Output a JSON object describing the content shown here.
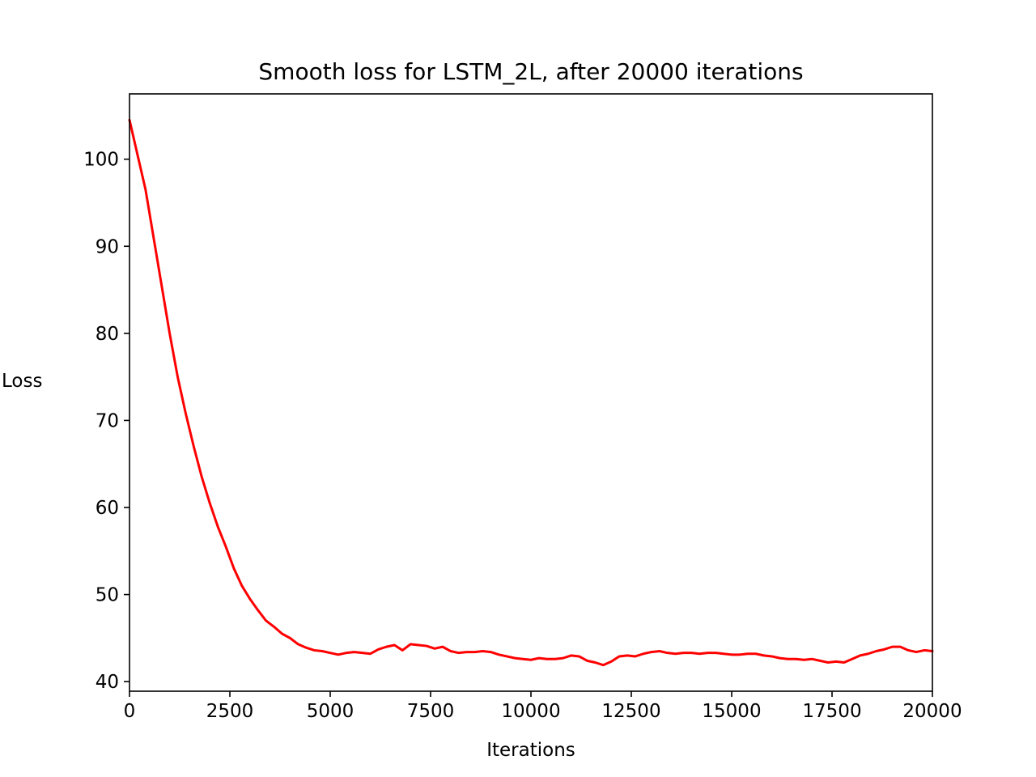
{
  "chart_data": {
    "type": "line",
    "title": "Smooth loss for LSTM_2L, after 20000 iterations",
    "xlabel": "Iterations",
    "ylabel": "Loss",
    "xlim": [
      0,
      20000
    ],
    "ylim": [
      38.9,
      107.5
    ],
    "xticks": [
      0,
      2500,
      5000,
      7500,
      10000,
      12500,
      15000,
      17500,
      20000
    ],
    "yticks": [
      40,
      50,
      60,
      70,
      80,
      90,
      100
    ],
    "grid": false,
    "legend": "none",
    "series": [
      {
        "color": "#ff0000",
        "x": [
          0,
          200,
          400,
          600,
          800,
          1000,
          1200,
          1400,
          1600,
          1800,
          2000,
          2200,
          2400,
          2600,
          2800,
          3000,
          3200,
          3400,
          3600,
          3800,
          4000,
          4200,
          4400,
          4600,
          4800,
          5000,
          5200,
          5400,
          5600,
          5800,
          6000,
          6200,
          6400,
          6600,
          6800,
          7000,
          7200,
          7400,
          7600,
          7800,
          8000,
          8200,
          8400,
          8600,
          8800,
          9000,
          9200,
          9400,
          9600,
          9800,
          10000,
          10200,
          10400,
          10600,
          10800,
          11000,
          11200,
          11400,
          11600,
          11800,
          12000,
          12200,
          12400,
          12600,
          12800,
          13000,
          13200,
          13400,
          13600,
          13800,
          14000,
          14200,
          14400,
          14600,
          14800,
          15000,
          15200,
          15400,
          15600,
          15800,
          16000,
          16200,
          16400,
          16600,
          16800,
          17000,
          17200,
          17400,
          17600,
          17800,
          18000,
          18200,
          18400,
          18600,
          18800,
          19000,
          19200,
          19400,
          19600,
          19800,
          20000
        ],
        "y": [
          104.5,
          100.5,
          96.5,
          91.0,
          85.5,
          80.0,
          75.0,
          70.8,
          67.0,
          63.5,
          60.5,
          57.8,
          55.5,
          53.0,
          51.0,
          49.5,
          48.2,
          47.0,
          46.3,
          45.5,
          45.0,
          44.3,
          43.9,
          43.6,
          43.5,
          43.3,
          43.1,
          43.3,
          43.4,
          43.3,
          43.2,
          43.7,
          44.0,
          44.2,
          43.6,
          44.3,
          44.2,
          44.1,
          43.8,
          44.0,
          43.5,
          43.3,
          43.4,
          43.4,
          43.5,
          43.4,
          43.1,
          42.9,
          42.7,
          42.6,
          42.5,
          42.7,
          42.6,
          42.6,
          42.7,
          43.0,
          42.9,
          42.4,
          42.2,
          41.9,
          42.3,
          42.9,
          43.0,
          42.9,
          43.2,
          43.4,
          43.5,
          43.3,
          43.2,
          43.3,
          43.3,
          43.2,
          43.3,
          43.3,
          43.2,
          43.1,
          43.1,
          43.2,
          43.2,
          43.0,
          42.9,
          42.7,
          42.6,
          42.6,
          42.5,
          42.6,
          42.4,
          42.2,
          42.3,
          42.2,
          42.6,
          43.0,
          43.2,
          43.5,
          43.7,
          44.0,
          44.0,
          43.6,
          43.4,
          43.6,
          43.5
        ]
      }
    ]
  }
}
